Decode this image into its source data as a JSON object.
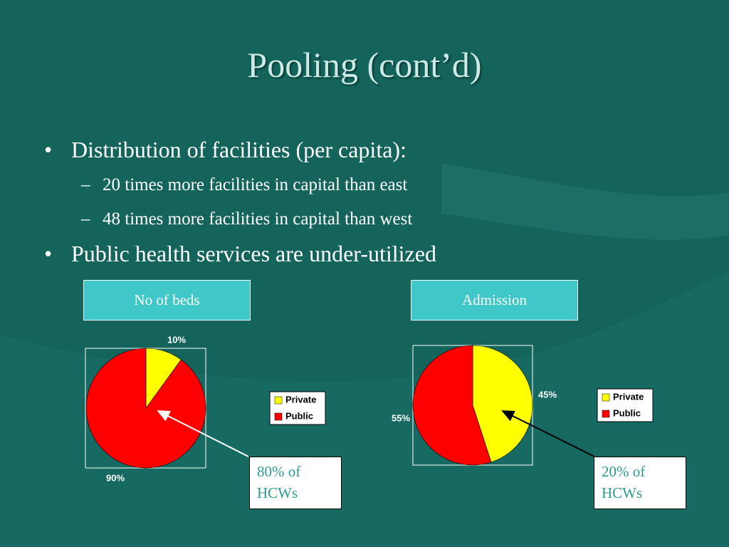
{
  "slide": {
    "title": "Pooling (cont’d)",
    "bullet1": "Distribution of facilities (per capita):",
    "sub1": "20 times more facilities in capital than east",
    "sub2": "48 times more facilities in capital than west",
    "bullet2": "Public health services are under-utilized",
    "bullet_symbol": "•",
    "dash_symbol": "–",
    "box_beds": "No of beds",
    "box_admission": "Admission",
    "note_left_line1": "80% of",
    "note_left_line2": "HCWs",
    "note_right_line1": "20% of",
    "note_right_line2": "HCWs"
  },
  "colors": {
    "background": "#14645c",
    "private": "#ffff00",
    "public": "#ff0000",
    "label_box": "#40c8c8"
  },
  "chart_data": [
    {
      "type": "pie",
      "title": "No of beds",
      "categories": [
        "Private",
        "Public"
      ],
      "values": [
        10,
        90
      ],
      "labels": [
        "10%",
        "90%"
      ],
      "legend": [
        "Private",
        "Public"
      ],
      "legend_placement": "right"
    },
    {
      "type": "pie",
      "title": "Admission",
      "categories": [
        "Private",
        "Public"
      ],
      "values": [
        45,
        55
      ],
      "labels": [
        "45%",
        "55%"
      ],
      "legend": [
        "Private",
        "Public"
      ],
      "legend_placement": "right"
    }
  ]
}
